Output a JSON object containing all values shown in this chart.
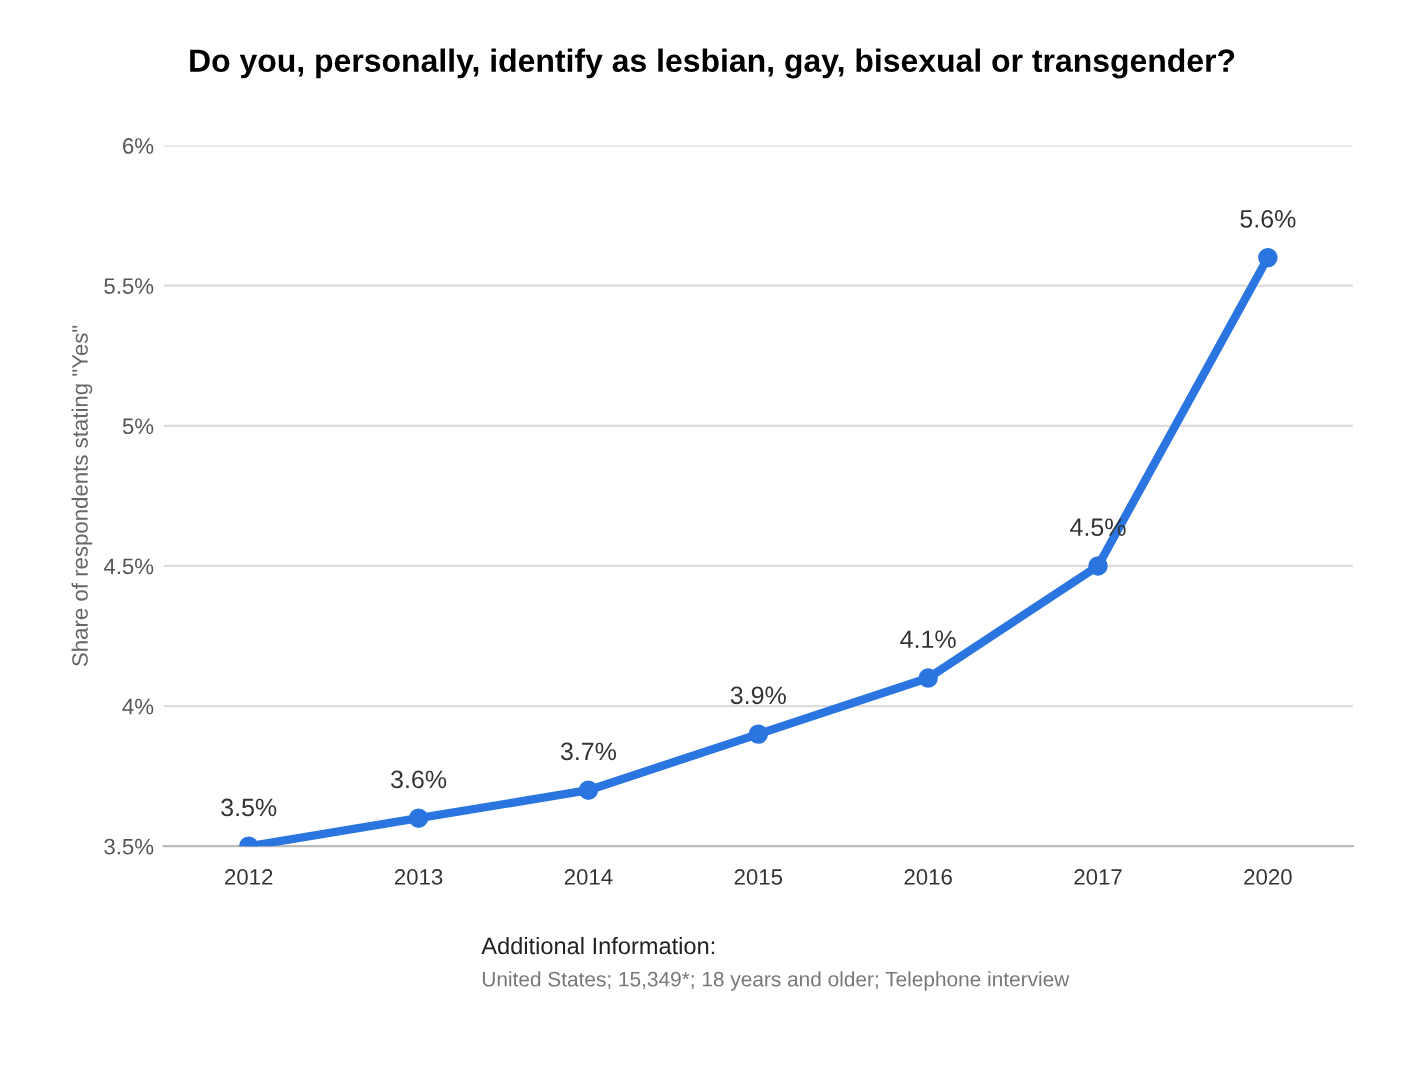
{
  "chart_data": {
    "type": "line",
    "title": "Do you, personally, identify as lesbian, gay, bisexual or transgender?",
    "ylabel": "Share of respondents stating \"Yes\"",
    "categories": [
      "2012",
      "2013",
      "2014",
      "2015",
      "2016",
      "2017",
      "2020"
    ],
    "series": [
      {
        "color": "#2a75e0",
        "values": [
          3.5,
          3.6,
          3.7,
          3.9,
          4.1,
          4.5,
          5.6
        ]
      }
    ],
    "value_labels": [
      "3.5%",
      "3.6%",
      "3.7%",
      "3.9%",
      "4.1%",
      "4.5%",
      "5.6%"
    ],
    "ylim": [
      3.5,
      6
    ],
    "yticks": [
      {
        "value": 3.5,
        "label": "3.5%"
      },
      {
        "value": 4,
        "label": "4%"
      },
      {
        "value": 4.5,
        "label": "4.5%"
      },
      {
        "value": 5,
        "label": "5%"
      },
      {
        "value": 5.5,
        "label": "5.5%"
      },
      {
        "value": 6,
        "label": "6%"
      }
    ],
    "grid": "y",
    "marker": "circle",
    "line_style": "solid",
    "legend": false,
    "annotations": [
      "Additional Information:",
      "United States; 15,349*; 18 years and older; Telephone interview"
    ]
  }
}
